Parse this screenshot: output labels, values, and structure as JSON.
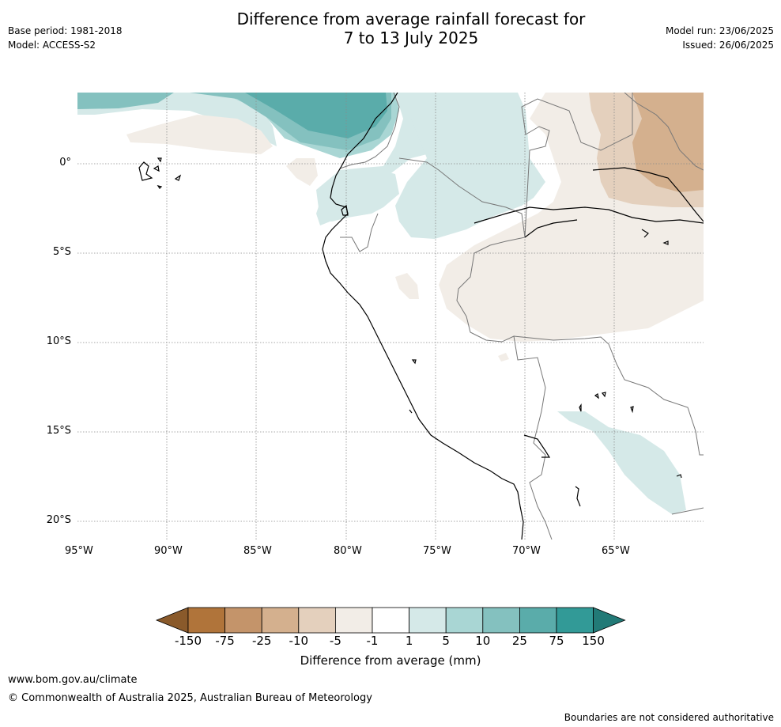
{
  "header": {
    "title_line1": "Difference from average rainfall forecast for",
    "title_line2": "7 to 13 July 2025",
    "base_period": "Base period: 1981-2018",
    "model": "Model: ACCESS-S2",
    "model_run": "Model run: 23/06/2025",
    "issued": "Issued: 26/06/2025"
  },
  "map": {
    "lat_labels": [
      "0°",
      "5°S",
      "10°S",
      "15°S",
      "20°S"
    ],
    "lon_labels": [
      "95°W",
      "90°W",
      "85°W",
      "80°W",
      "75°W",
      "70°W",
      "65°W"
    ]
  },
  "colorbar": {
    "ticks": [
      "-150",
      "-75",
      "-25",
      "-10",
      "-5",
      "-1",
      "1",
      "5",
      "10",
      "25",
      "75",
      "150"
    ],
    "colors": [
      "#8a5a2b",
      "#b0743a",
      "#c4946a",
      "#d4b08e",
      "#e4d0bd",
      "#f2ede7",
      "#ffffff",
      "#d5e9e8",
      "#a9d6d4",
      "#84c1bf",
      "#5aacaa",
      "#329a97",
      "#227a77"
    ],
    "label": "Difference from average (mm)"
  },
  "footer": {
    "website": "www.bom.gov.au/climate",
    "copyright": "© Commonwealth of Australia 2025, Australian Bureau of Meteorology",
    "disclaimer": "Boundaries are not considered authoritative"
  }
}
